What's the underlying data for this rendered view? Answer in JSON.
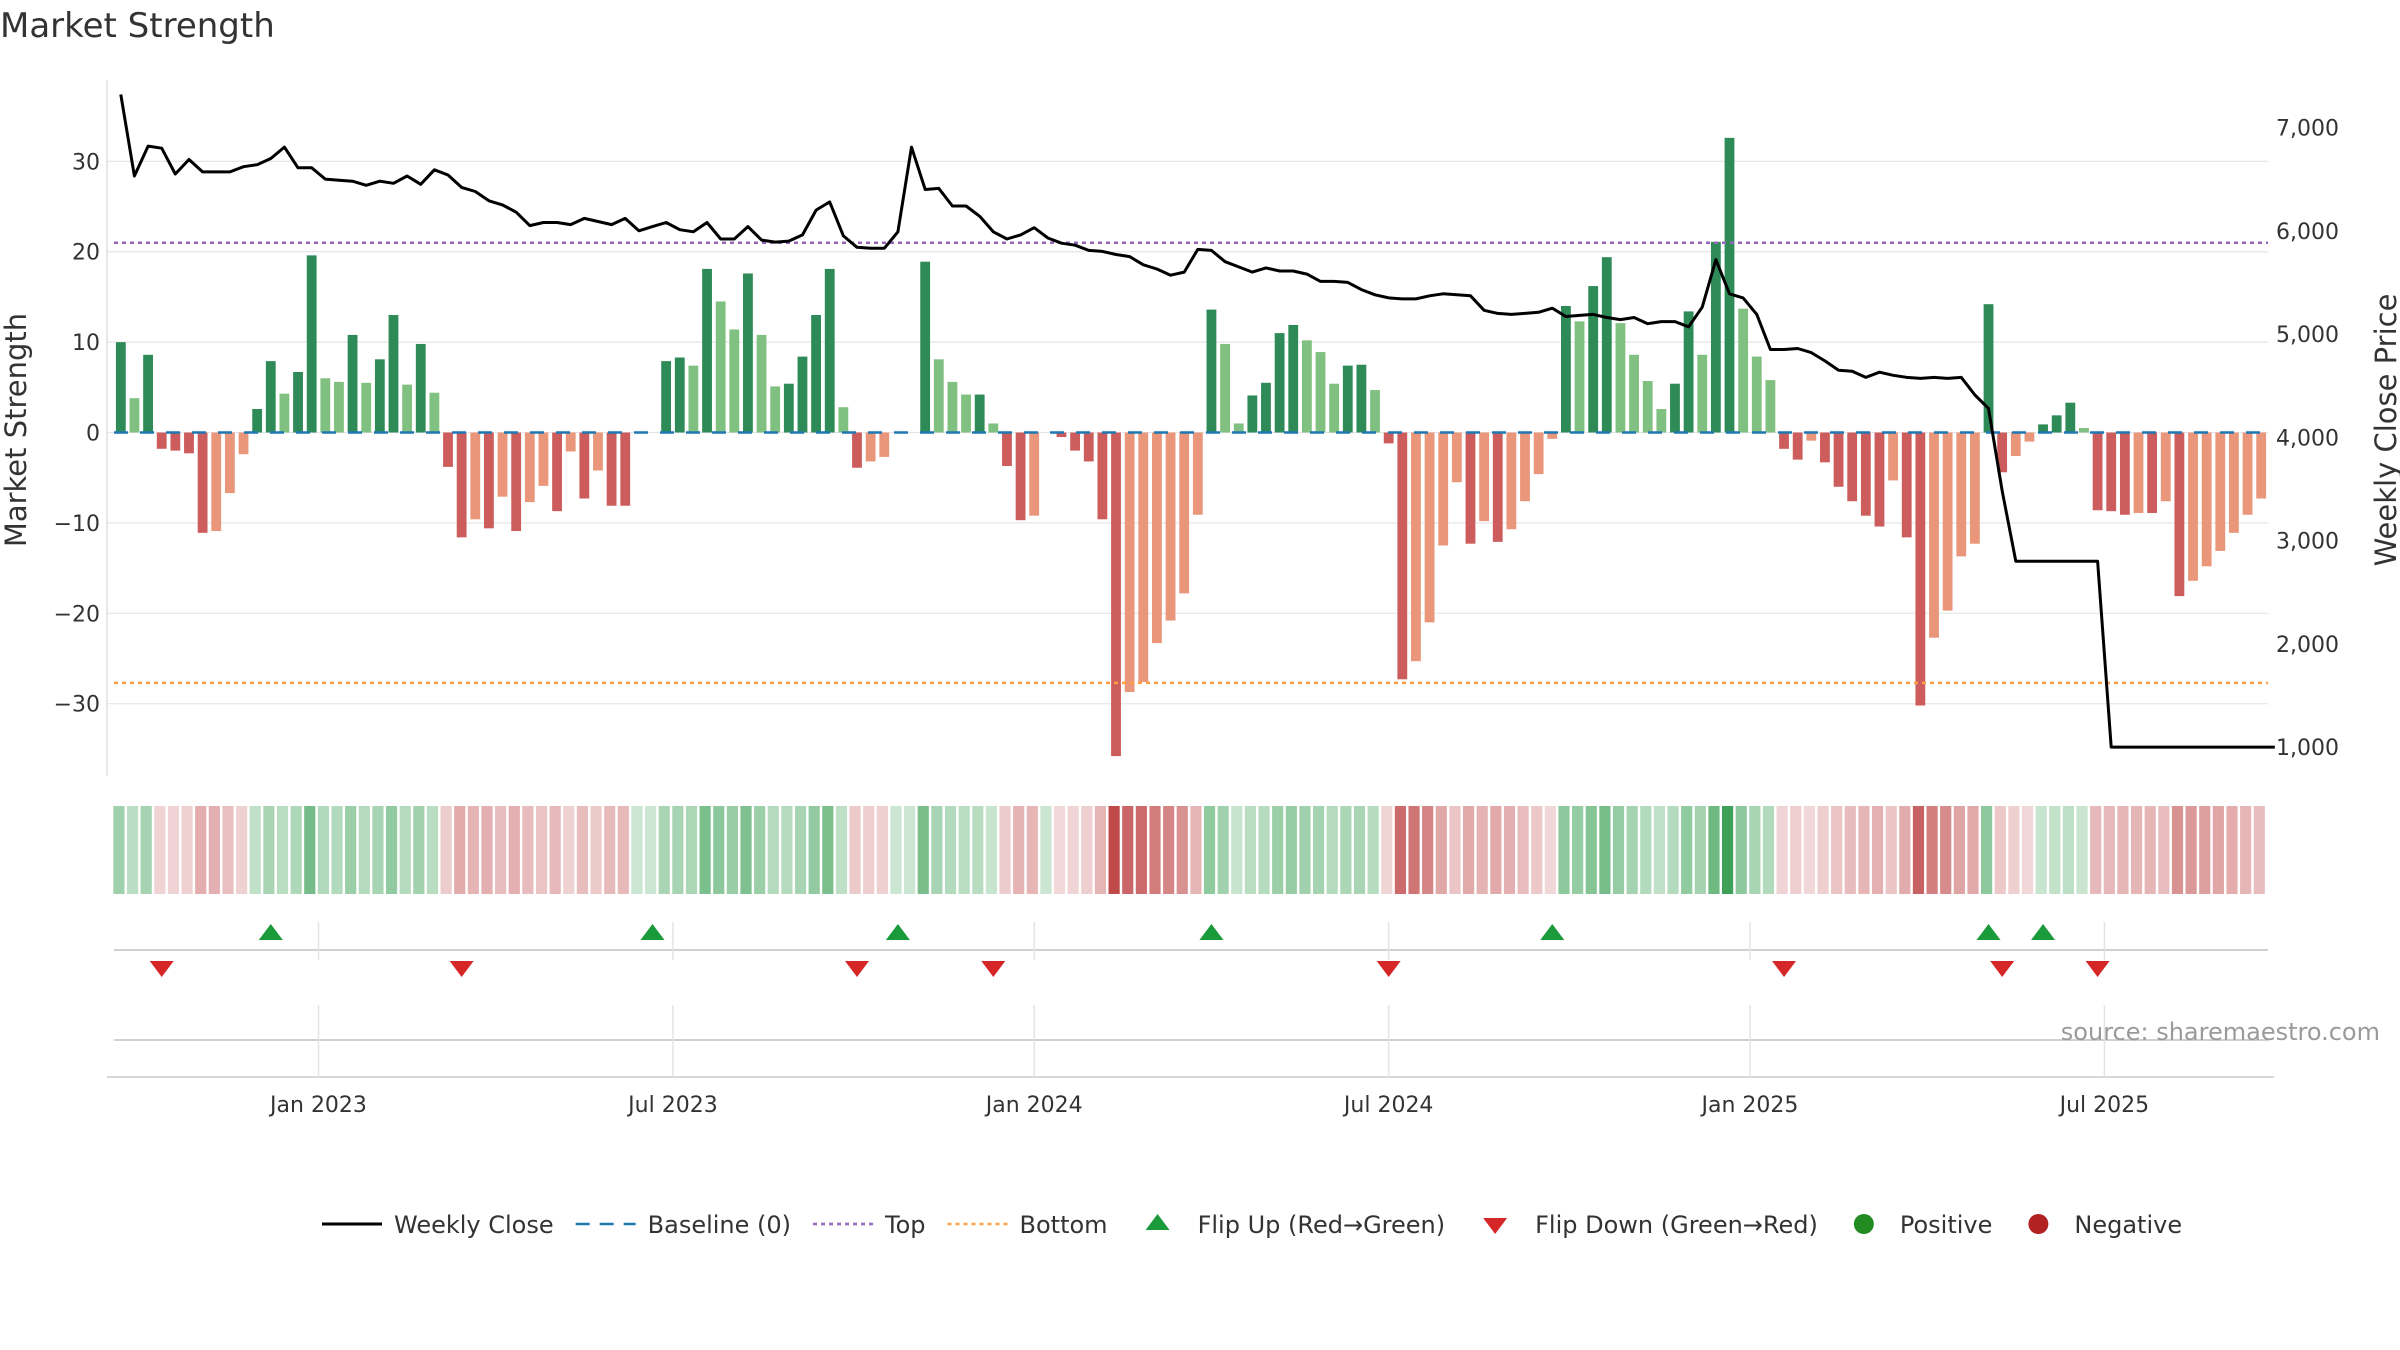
{
  "chart_data": {
    "type": "bar",
    "title": "Market Strength",
    "ylabel_left": "Market Strength",
    "ylabel_right": "Weekly Close Price",
    "source": "source: sharemaestro.com",
    "ylim_left": [
      -38,
      39
    ],
    "yticks_left": [
      {
        "v": 30,
        "label": "30"
      },
      {
        "v": 20,
        "label": "20"
      },
      {
        "v": 10,
        "label": "10"
      },
      {
        "v": 0,
        "label": "0"
      },
      {
        "v": -10,
        "label": "−10"
      },
      {
        "v": -20,
        "label": "−20"
      },
      {
        "v": -30,
        "label": "−30"
      }
    ],
    "ylim_right": [
      720,
      7460
    ],
    "yticks_right": [
      {
        "v": 7000,
        "label": "7,000"
      },
      {
        "v": 6000,
        "label": "6,000"
      },
      {
        "v": 5000,
        "label": "5,000"
      },
      {
        "v": 4000,
        "label": "4,000"
      },
      {
        "v": 3000,
        "label": "3,000"
      },
      {
        "v": 2000,
        "label": "2,000"
      },
      {
        "v": 1000,
        "label": "1,000"
      }
    ],
    "x_start": "2022-09-26",
    "x_unit": "week",
    "xticks": [
      {
        "week": 15,
        "label": "Jan 2023"
      },
      {
        "week": 41,
        "label": "Jul 2023"
      },
      {
        "week": 67.5,
        "label": "Jan 2024"
      },
      {
        "week": 93.5,
        "label": "Jul 2024"
      },
      {
        "week": 120,
        "label": "Jan 2025"
      },
      {
        "week": 146,
        "label": "Jul 2025"
      }
    ],
    "top_line": 21,
    "bottom_line": -27.7,
    "strength": [
      10,
      3.8,
      8.6,
      -1.8,
      -2,
      -2.3,
      -11.1,
      -10.9,
      -6.7,
      -2.4,
      2.6,
      7.9,
      4.3,
      6.7,
      19.6,
      6,
      5.6,
      10.8,
      5.5,
      8.1,
      13,
      5.3,
      9.8,
      4.4,
      -3.8,
      -11.6,
      -9.6,
      -10.6,
      -7.1,
      -10.9,
      -7.7,
      -5.9,
      -8.7,
      -2.1,
      -7.3,
      -4.2,
      -8.1,
      -8.1,
      0,
      0,
      7.9,
      8.3,
      7.4,
      18.1,
      14.5,
      11.4,
      17.6,
      10.8,
      5.1,
      5.4,
      8.4,
      13,
      18.1,
      2.8,
      -3.9,
      -3.2,
      -2.7,
      0,
      0,
      18.9,
      8.1,
      5.6,
      4.2,
      4.2,
      1,
      -3.7,
      -9.7,
      -9.2,
      0,
      -0.5,
      -2,
      -3.2,
      -9.6,
      -35.8,
      -28.7,
      -27.6,
      -23.3,
      -20.8,
      -17.8,
      -9.1,
      13.6,
      9.8,
      1,
      4.1,
      5.5,
      11,
      11.9,
      10.2,
      8.9,
      5.4,
      7.4,
      7.5,
      4.7,
      -1.2,
      -27.3,
      -25.3,
      -21,
      -12.5,
      -5.5,
      -12.3,
      -9.8,
      -12.1,
      -10.7,
      -7.6,
      -4.6,
      -0.7,
      14,
      12.3,
      16.2,
      19.4,
      12.1,
      8.6,
      5.7,
      2.6,
      5.4,
      13.4,
      8.6,
      21.1,
      32.6,
      13.7,
      8.4,
      5.8,
      -1.8,
      -3,
      -0.9,
      -3.3,
      -6,
      -7.6,
      -9.2,
      -10.4,
      -5.3,
      -11.6,
      -30.2,
      -22.7,
      -19.7,
      -13.7,
      -12.3,
      14.2,
      -4.4,
      -2.6,
      -1,
      0.9,
      1.9,
      3.3,
      0.5,
      -8.6,
      -8.7,
      -9.1,
      -8.9,
      -8.9,
      -7.6,
      -18.1,
      -16.4,
      -14.8,
      -13.1,
      -11.1,
      -9.1,
      -7.3
    ],
    "weekly_close": [
      7320,
      6530,
      6820,
      6800,
      6550,
      6690,
      6570,
      6570,
      6570,
      6620,
      6640,
      6700,
      6810,
      6610,
      6610,
      6500,
      6490,
      6480,
      6440,
      6480,
      6460,
      6530,
      6450,
      6590,
      6540,
      6420,
      6380,
      6290,
      6250,
      6180,
      6050,
      6080,
      6080,
      6060,
      6120,
      6090,
      6060,
      6120,
      6000,
      6040,
      6080,
      6010,
      5990,
      6080,
      5920,
      5920,
      6040,
      5910,
      5890,
      5900,
      5960,
      6200,
      6280,
      5950,
      5840,
      5830,
      5830,
      5990,
      6810,
      6400,
      6410,
      6240,
      6240,
      6140,
      5990,
      5920,
      5960,
      6030,
      5930,
      5880,
      5860,
      5810,
      5800,
      5770,
      5750,
      5670,
      5630,
      5570,
      5600,
      5820,
      5810,
      5700,
      5650,
      5600,
      5640,
      5610,
      5610,
      5580,
      5510,
      5510,
      5500,
      5430,
      5380,
      5350,
      5340,
      5340,
      5370,
      5390,
      5380,
      5370,
      5230,
      5200,
      5190,
      5200,
      5210,
      5250,
      5170,
      5180,
      5190,
      5160,
      5140,
      5160,
      5100,
      5120,
      5120,
      5070,
      5260,
      5720,
      5390,
      5350,
      5190,
      4850,
      4850,
      4860,
      4820,
      4740,
      4650,
      4640,
      4580,
      4630,
      4600,
      4580,
      4570,
      4580,
      4570,
      4580,
      4410,
      4280,
      3480,
      2800,
      2800,
      2800,
      2800,
      2800,
      2800,
      2800,
      1000,
      1000,
      1000,
      1000,
      1000,
      1000,
      1000,
      1000,
      1000,
      1000,
      1000,
      1000,
      1000
    ],
    "flips": [
      {
        "week": 3,
        "dir": "down"
      },
      {
        "week": 11,
        "dir": "up"
      },
      {
        "week": 25,
        "dir": "down"
      },
      {
        "week": 39,
        "dir": "up"
      },
      {
        "week": 54,
        "dir": "down"
      },
      {
        "week": 57,
        "dir": "up"
      },
      {
        "week": 64,
        "dir": "down"
      },
      {
        "week": 80,
        "dir": "up"
      },
      {
        "week": 93,
        "dir": "down"
      },
      {
        "week": 105,
        "dir": "up"
      },
      {
        "week": 122,
        "dir": "down"
      },
      {
        "week": 137,
        "dir": "up"
      },
      {
        "week": 138,
        "dir": "down"
      },
      {
        "week": 141,
        "dir": "up"
      },
      {
        "week": 145,
        "dir": "down"
      }
    ],
    "legend": [
      {
        "kind": "line",
        "label": "Weekly Close"
      },
      {
        "kind": "dash",
        "label": "Baseline (0)"
      },
      {
        "kind": "dot-purple",
        "label": "Top"
      },
      {
        "kind": "dot-orange",
        "label": "Bottom"
      },
      {
        "kind": "tri-up",
        "label": "Flip Up (Red→Green)"
      },
      {
        "kind": "tri-down",
        "label": "Flip Down (Green→Red)"
      },
      {
        "kind": "circle-green",
        "label": "Positive"
      },
      {
        "kind": "circle-red",
        "label": "Negative"
      }
    ],
    "legend_placement": "bottom",
    "grid": true
  },
  "colors": {
    "pos_dark": "#2e8b57",
    "pos_light": "#80c080",
    "neg_dark": "#cd5c5c",
    "neg_light": "#e9967a",
    "line": "#000000",
    "baseline": "#1f77b4",
    "top": "#9467bd",
    "bottom": "#ff9f43",
    "flip_up": "#1a9a3a",
    "flip_down": "#d62728",
    "positive": "#228b22",
    "negative": "#b22222"
  }
}
